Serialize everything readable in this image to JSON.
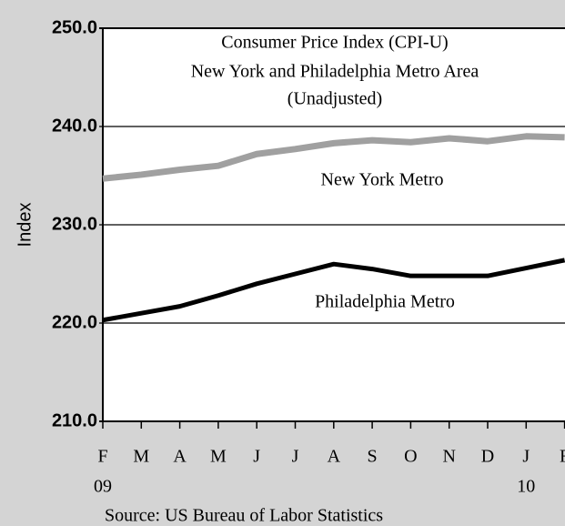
{
  "chart_data": {
    "type": "line",
    "title": [
      "Consumer Price Index (CPI-U)",
      "New York and Philadelphia Metro Area",
      "(Unadjusted)"
    ],
    "y_label": "Index",
    "source": "Source: US Bureau of Labor Statistics",
    "categories": [
      "F",
      "M",
      "A",
      "M",
      "J",
      "J",
      "A",
      "S",
      "O",
      "N",
      "D",
      "J",
      "F"
    ],
    "category_years": [
      "09",
      null,
      null,
      null,
      null,
      null,
      null,
      null,
      null,
      null,
      null,
      "10",
      null
    ],
    "series": [
      {
        "name": "New York Metro",
        "color": "#a0a0a0",
        "values": [
          234.7,
          235.1,
          235.6,
          236.0,
          237.2,
          237.7,
          238.3,
          238.6,
          238.4,
          238.8,
          238.5,
          239.0,
          238.9
        ]
      },
      {
        "name": "Philadelphia Metro",
        "color": "#000000",
        "values": [
          220.3,
          221.0,
          221.7,
          222.8,
          224.0,
          225.0,
          226.0,
          225.5,
          224.8,
          224.8,
          224.8,
          225.6,
          226.4
        ]
      }
    ],
    "ylim": [
      210,
      250
    ],
    "yticks": [
      {
        "value": 210,
        "label": "210.0"
      },
      {
        "value": 220,
        "label": "220.0"
      },
      {
        "value": 230,
        "label": "230.0"
      },
      {
        "value": 240,
        "label": "240.0"
      },
      {
        "value": 250,
        "label": "250.0"
      }
    ],
    "grid": true
  }
}
